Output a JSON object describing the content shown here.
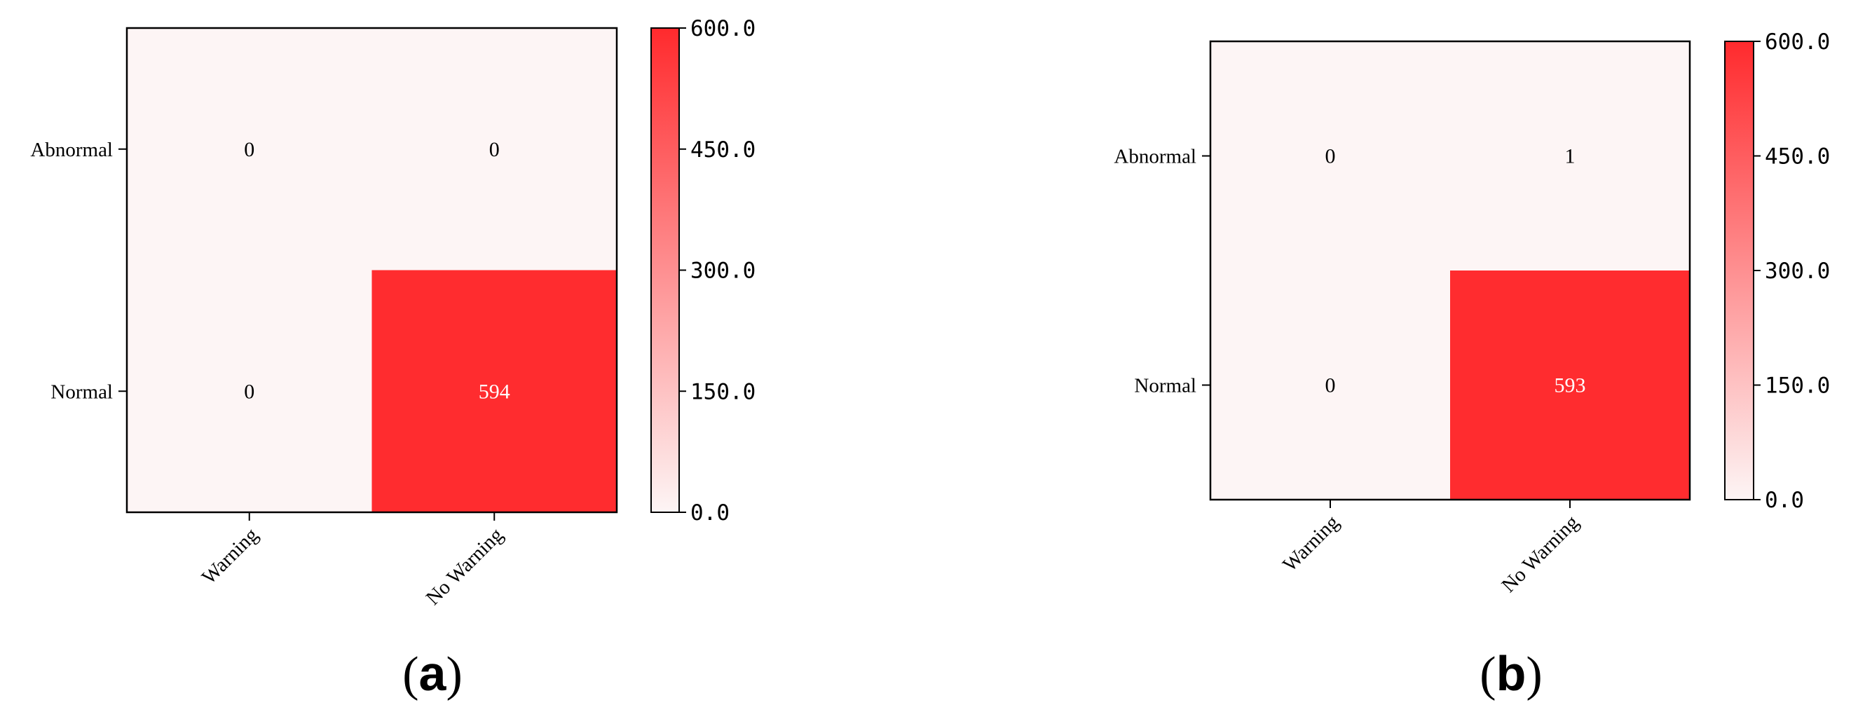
{
  "chart_data": [
    {
      "type": "heatmap",
      "panel_label": "a",
      "rows": [
        "Abnormal",
        "Normal"
      ],
      "columns": [
        "Warning",
        "No Warning"
      ],
      "values": [
        [
          0,
          0
        ],
        [
          0,
          594
        ]
      ],
      "colorbar": {
        "min": 0,
        "max": 600,
        "ticks": [
          "0.0",
          "150.0",
          "300.0",
          "450.0",
          "600.0"
        ],
        "tick_values": [
          0,
          150,
          300,
          450,
          600
        ]
      },
      "colormap": [
        "#fdf5f5",
        "#ff2a2d"
      ]
    },
    {
      "type": "heatmap",
      "panel_label": "b",
      "rows": [
        "Abnormal",
        "Normal"
      ],
      "columns": [
        "Warning",
        "No Warning"
      ],
      "values": [
        [
          0,
          1
        ],
        [
          0,
          593
        ]
      ],
      "colorbar": {
        "min": 0,
        "max": 600,
        "ticks": [
          "0.0",
          "150.0",
          "300.0",
          "450.0",
          "600.0"
        ],
        "tick_values": [
          0,
          150,
          300,
          450,
          600
        ]
      },
      "colormap": [
        "#fdf5f5",
        "#ff2a2d"
      ]
    }
  ]
}
